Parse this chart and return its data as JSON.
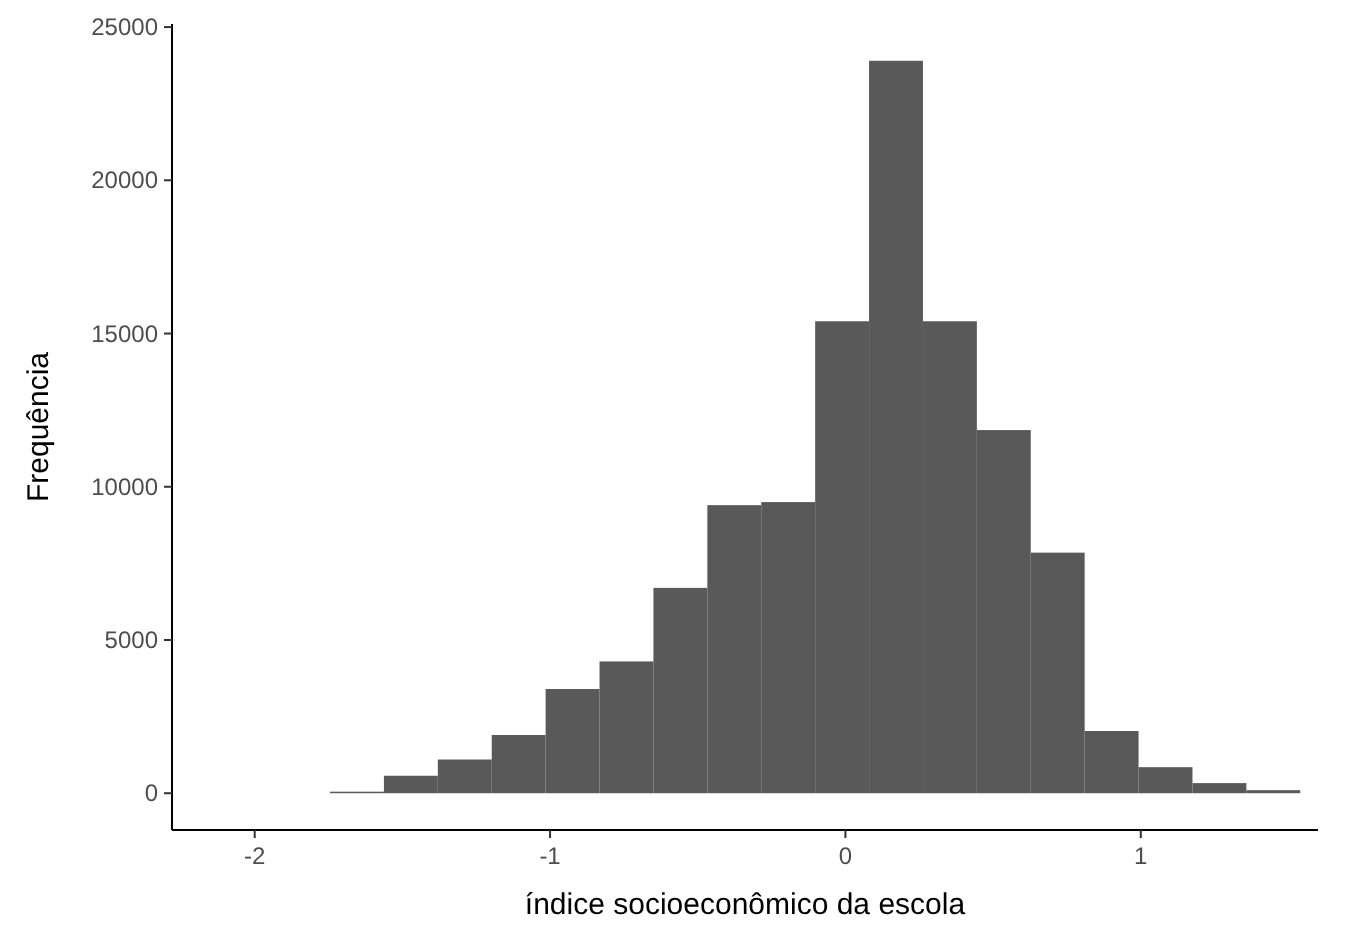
{
  "chart_data": {
    "type": "histogram",
    "xlabel": "índice socioeconômico da escola",
    "ylabel": "Frequência",
    "bins": [
      -1.745,
      -1.5625,
      -1.38,
      -1.1975,
      -1.015,
      -0.8325,
      -0.65,
      -0.4675,
      -0.285,
      -0.1025,
      0.08,
      0.2625,
      0.445,
      0.6275,
      0.81,
      0.9925,
      1.175,
      1.3575,
      1.54
    ],
    "values": [
      50,
      570,
      1100,
      1900,
      3400,
      4300,
      6700,
      9400,
      9500,
      15400,
      23900,
      15400,
      11850,
      7850,
      2030,
      850,
      330,
      100
    ],
    "color": "#595959",
    "xlim": [
      -2.28,
      1.6
    ],
    "ylim": [
      -1200,
      25100
    ],
    "xticks": [
      -2,
      -1,
      0,
      1
    ],
    "yticks": [
      0,
      5000,
      10000,
      15000,
      20000,
      25000
    ],
    "grid": false
  }
}
